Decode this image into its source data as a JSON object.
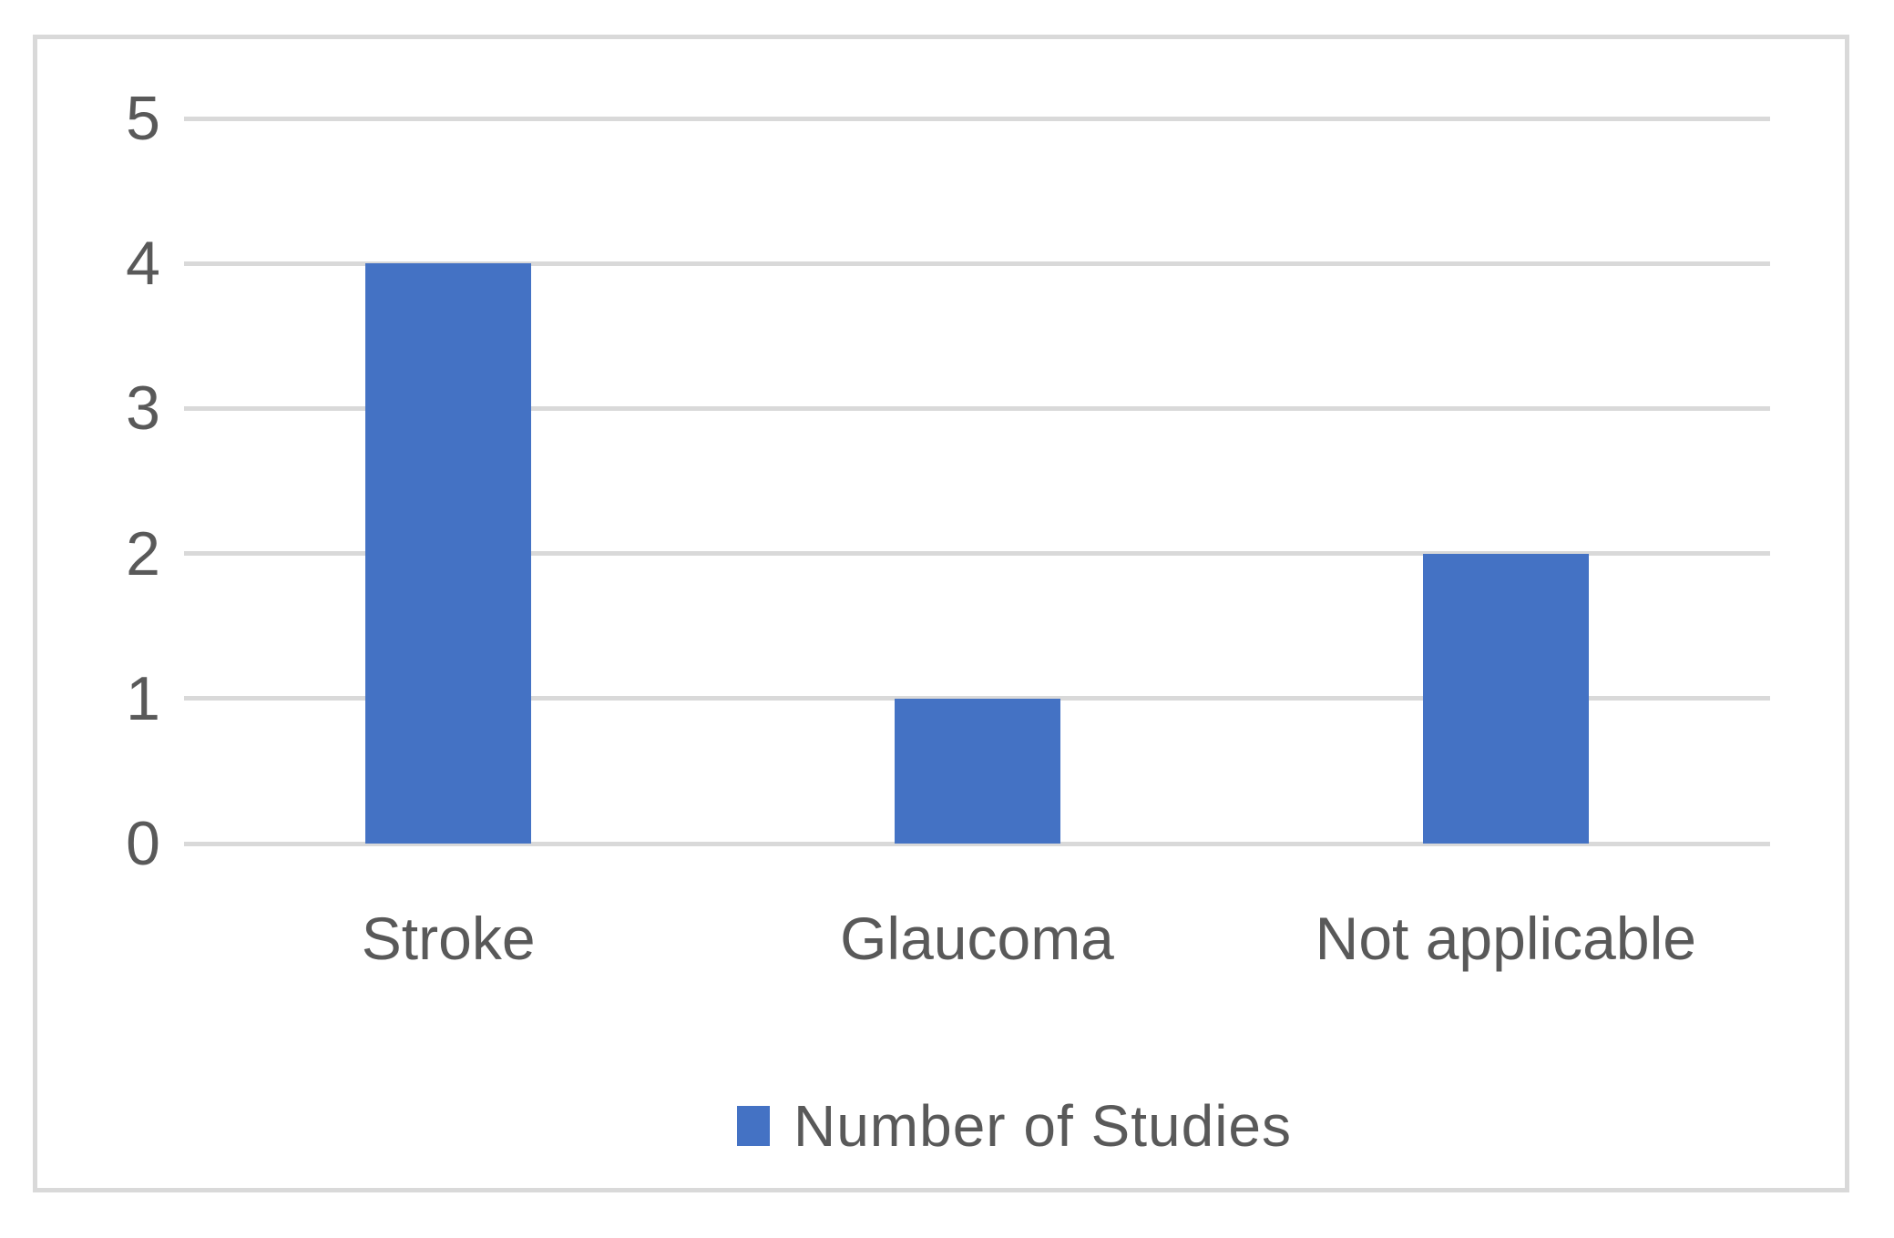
{
  "chart_data": {
    "type": "bar",
    "categories": [
      "Stroke",
      "Glaucoma",
      "Not applicable"
    ],
    "series": [
      {
        "name": "Number of Studies",
        "values": [
          4,
          1,
          2
        ]
      }
    ],
    "title": "",
    "xlabel": "",
    "ylabel": "",
    "ylim": [
      0,
      5
    ],
    "yticks": [
      0,
      1,
      2,
      3,
      4,
      5
    ],
    "grid": true,
    "legend_position": "bottom",
    "colors": {
      "bar": "#4472C4",
      "gridline": "#D9D9D9",
      "border": "#D9D9D9",
      "text": "#595959",
      "background": "#FFFFFF"
    }
  },
  "legend": {
    "label": "Number of Studies"
  }
}
